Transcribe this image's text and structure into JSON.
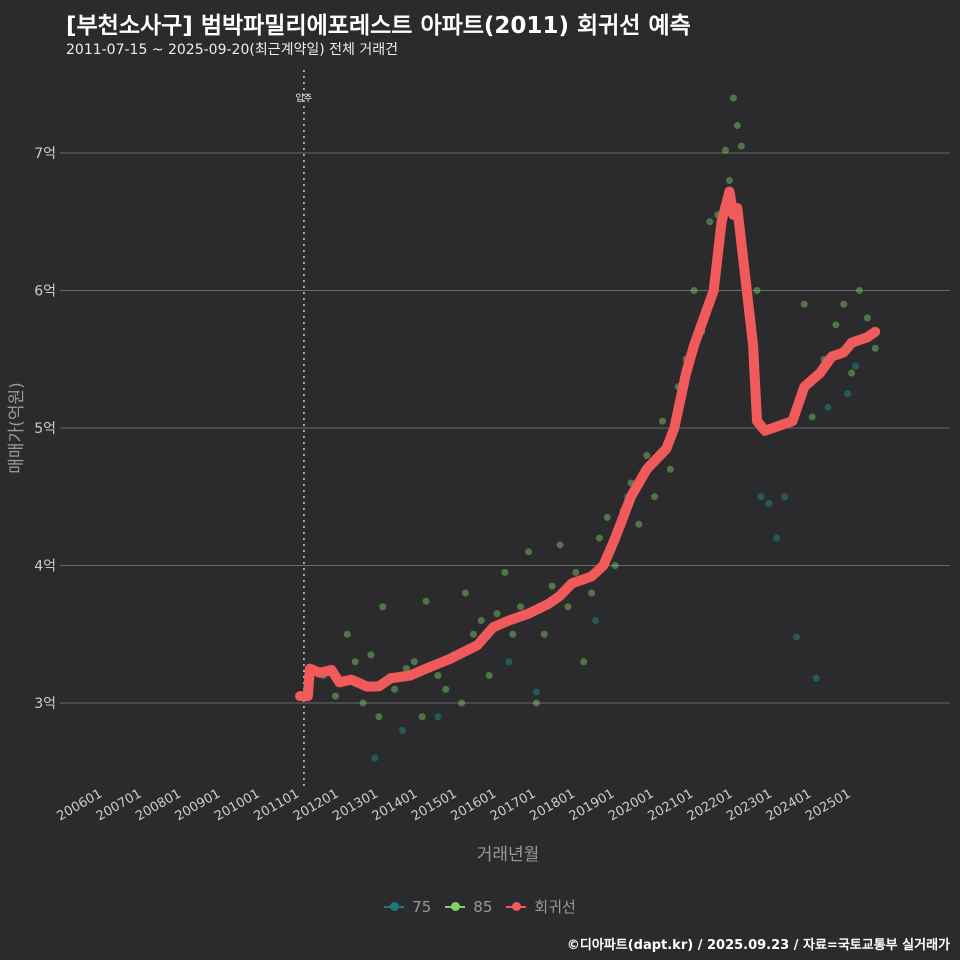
{
  "title": "[부천소사구] 범박파밀리에포레스트 아파트(2011) 회귀선 예측",
  "subtitle": "2011-07-15 ~ 2025-09-20(최근계약일) 전체 거래건",
  "caption": "©디아파트(dapt.kr) / 2025.09.23 / 자료=국토교통부 실거래가",
  "chart_data": {
    "type": "scatter",
    "xlabel": "거래년월",
    "ylabel": "매매가(억원)",
    "ylim": [
      2.4,
      7.6
    ],
    "xlim": [
      2005.5,
      2026.2
    ],
    "yticks": [
      {
        "v": 3,
        "label": "3억"
      },
      {
        "v": 4,
        "label": "4억"
      },
      {
        "v": 5,
        "label": "5억"
      },
      {
        "v": 6,
        "label": "6억"
      },
      {
        "v": 7,
        "label": "7억"
      }
    ],
    "xticks": [
      "200601",
      "200701",
      "200801",
      "200901",
      "201001",
      "201101",
      "201201",
      "201301",
      "201401",
      "201501",
      "201601",
      "201701",
      "201801",
      "201901",
      "202001",
      "202101",
      "202201",
      "202301",
      "202401",
      "202501"
    ],
    "annotation": {
      "label": "입주",
      "x": 2011.1
    },
    "legend": [
      {
        "name": "75",
        "color": "#1f7a7a"
      },
      {
        "name": "85",
        "color": "#7fd36a"
      },
      {
        "name": "회귀선",
        "color": "#f05a5a"
      }
    ],
    "series": {
      "regression": [
        [
          2011.0,
          3.05
        ],
        [
          2011.2,
          3.05
        ],
        [
          2011.25,
          3.25
        ],
        [
          2011.5,
          3.22
        ],
        [
          2011.8,
          3.24
        ],
        [
          2012.0,
          3.15
        ],
        [
          2012.3,
          3.17
        ],
        [
          2012.7,
          3.12
        ],
        [
          2013.0,
          3.12
        ],
        [
          2013.3,
          3.18
        ],
        [
          2013.8,
          3.2
        ],
        [
          2014.2,
          3.25
        ],
        [
          2014.8,
          3.32
        ],
        [
          2015.5,
          3.42
        ],
        [
          2015.9,
          3.55
        ],
        [
          2016.3,
          3.6
        ],
        [
          2016.8,
          3.65
        ],
        [
          2017.3,
          3.72
        ],
        [
          2017.6,
          3.78
        ],
        [
          2017.9,
          3.87
        ],
        [
          2018.4,
          3.92
        ],
        [
          2018.7,
          4.0
        ],
        [
          2019.0,
          4.2
        ],
        [
          2019.4,
          4.5
        ],
        [
          2019.8,
          4.7
        ],
        [
          2020.3,
          4.85
        ],
        [
          2020.5,
          5.0
        ],
        [
          2020.8,
          5.4
        ],
        [
          2021.0,
          5.6
        ],
        [
          2021.5,
          6.0
        ],
        [
          2021.7,
          6.5
        ],
        [
          2021.9,
          6.72
        ],
        [
          2022.0,
          6.55
        ],
        [
          2022.1,
          6.6
        ],
        [
          2022.5,
          5.6
        ],
        [
          2022.6,
          5.05
        ],
        [
          2022.8,
          4.98
        ],
        [
          2023.0,
          5.0
        ],
        [
          2023.5,
          5.05
        ],
        [
          2023.8,
          5.3
        ],
        [
          2024.2,
          5.4
        ],
        [
          2024.5,
          5.52
        ],
        [
          2024.8,
          5.55
        ],
        [
          2025.0,
          5.62
        ],
        [
          2025.4,
          5.66
        ],
        [
          2025.6,
          5.7
        ]
      ],
      "t85": [
        [
          2011.6,
          3.2
        ],
        [
          2011.9,
          3.05
        ],
        [
          2012.2,
          3.5
        ],
        [
          2012.4,
          3.3
        ],
        [
          2012.6,
          3.0
        ],
        [
          2012.8,
          3.35
        ],
        [
          2013.0,
          2.9
        ],
        [
          2013.1,
          3.7
        ],
        [
          2013.4,
          3.1
        ],
        [
          2013.7,
          3.25
        ],
        [
          2013.9,
          3.3
        ],
        [
          2014.1,
          2.9
        ],
        [
          2014.2,
          3.74
        ],
        [
          2014.5,
          3.2
        ],
        [
          2014.7,
          3.1
        ],
        [
          2014.9,
          3.35
        ],
        [
          2015.1,
          3.0
        ],
        [
          2015.2,
          3.8
        ],
        [
          2015.4,
          3.5
        ],
        [
          2015.6,
          3.6
        ],
        [
          2015.8,
          3.2
        ],
        [
          2016.0,
          3.65
        ],
        [
          2016.2,
          3.95
        ],
        [
          2016.4,
          3.5
        ],
        [
          2016.6,
          3.7
        ],
        [
          2016.8,
          4.1
        ],
        [
          2017.0,
          3.0
        ],
        [
          2017.2,
          3.5
        ],
        [
          2017.4,
          3.85
        ],
        [
          2017.6,
          4.15
        ],
        [
          2017.8,
          3.7
        ],
        [
          2018.0,
          3.95
        ],
        [
          2018.2,
          3.3
        ],
        [
          2018.4,
          3.8
        ],
        [
          2018.6,
          4.2
        ],
        [
          2018.8,
          4.35
        ],
        [
          2019.0,
          4.0
        ],
        [
          2019.2,
          4.4
        ],
        [
          2019.4,
          4.6
        ],
        [
          2019.6,
          4.3
        ],
        [
          2019.8,
          4.8
        ],
        [
          2020.0,
          4.5
        ],
        [
          2020.2,
          5.05
        ],
        [
          2020.4,
          4.7
        ],
        [
          2020.6,
          5.3
        ],
        [
          2020.8,
          5.5
        ],
        [
          2021.0,
          6.0
        ],
        [
          2021.2,
          5.7
        ],
        [
          2021.4,
          6.5
        ],
        [
          2021.6,
          6.55
        ],
        [
          2021.8,
          7.02
        ],
        [
          2021.9,
          6.8
        ],
        [
          2022.0,
          7.4
        ],
        [
          2022.1,
          7.2
        ],
        [
          2022.2,
          7.05
        ],
        [
          2022.6,
          6.0
        ],
        [
          2023.8,
          5.9
        ],
        [
          2024.0,
          5.08
        ],
        [
          2024.3,
          5.5
        ],
        [
          2024.6,
          5.75
        ],
        [
          2024.8,
          5.9
        ],
        [
          2025.0,
          5.4
        ],
        [
          2025.2,
          6.0
        ],
        [
          2025.4,
          5.8
        ],
        [
          2025.6,
          5.58
        ]
      ],
      "t75": [
        [
          2012.9,
          2.6
        ],
        [
          2013.6,
          2.8
        ],
        [
          2014.5,
          2.9
        ],
        [
          2016.3,
          3.3
        ],
        [
          2017.0,
          3.08
        ],
        [
          2018.5,
          3.6
        ],
        [
          2019.3,
          4.5
        ],
        [
          2022.7,
          4.5
        ],
        [
          2022.9,
          4.45
        ],
        [
          2023.1,
          4.2
        ],
        [
          2023.3,
          4.5
        ],
        [
          2023.6,
          3.48
        ],
        [
          2024.1,
          3.18
        ],
        [
          2024.4,
          5.15
        ],
        [
          2024.9,
          5.25
        ],
        [
          2025.1,
          5.45
        ]
      ]
    }
  }
}
